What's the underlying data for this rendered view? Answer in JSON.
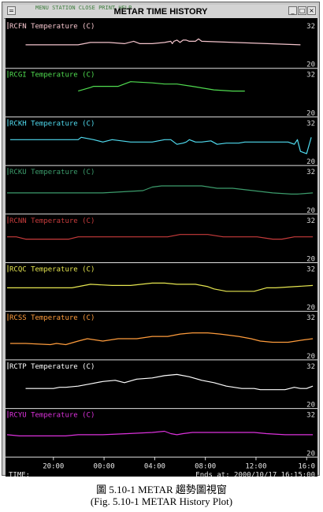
{
  "window": {
    "title": "METAR TIME HISTORY",
    "menu_strip": "MENU  STATION  CLOSE  PRINT  HELP"
  },
  "caption": {
    "line1": "圖 5.10-1 METAR 趨勢圖視窗",
    "line2": "(Fig. 5.10-1 METAR History Plot)"
  },
  "footer": {
    "time_label": "TIME:",
    "ends_at": "Ends at: 2000/10/17 16:15:00"
  },
  "x_axis": {
    "range": [
      0,
      100
    ],
    "ticks": [
      {
        "x": 15.0,
        "label": "20:00"
      },
      {
        "x": 31.4,
        "label": "00:00"
      },
      {
        "x": 47.8,
        "label": "04:00"
      },
      {
        "x": 64.2,
        "label": "08:00"
      },
      {
        "x": 80.6,
        "label": "12:00"
      },
      {
        "x": 97.0,
        "label": "16:0"
      }
    ]
  },
  "chart_data": [
    {
      "type": "line",
      "title": "RCFN Temperature (C)",
      "color": "#f4c4cc",
      "ylim": [
        20,
        32
      ],
      "ytick_top": "32",
      "ytick_bottom": "20",
      "x": [
        6,
        23,
        25,
        27,
        33,
        38,
        41,
        43,
        47,
        51,
        53,
        53.5,
        54,
        55,
        56,
        57,
        58,
        59,
        61,
        62,
        63,
        95
      ],
      "y": [
        26,
        26,
        26.5,
        27,
        27,
        26.5,
        27.5,
        26.5,
        26.5,
        27,
        27.5,
        26.5,
        27.5,
        28,
        27,
        28,
        28,
        27.5,
        27.5,
        28.5,
        27.5,
        26
      ]
    },
    {
      "type": "line",
      "title": "RCGI Temperature (C)",
      "color": "#50dc50",
      "ylim": [
        20,
        32
      ],
      "ytick_top": "32",
      "ytick_bottom": "20",
      "x": [
        23,
        27,
        28,
        36,
        40,
        47,
        51,
        55,
        60,
        67,
        73,
        77
      ],
      "y": [
        27,
        28.5,
        29,
        29,
        31,
        30.5,
        30,
        30,
        29,
        27.5,
        27,
        27
      ]
    },
    {
      "type": "line",
      "title": "RCKH Temperature (C)",
      "color": "#50dcf0",
      "ylim": [
        20,
        32
      ],
      "ytick_top": "32",
      "ytick_bottom": "20",
      "x": [
        1,
        6,
        23,
        24,
        28,
        31,
        34,
        40,
        47,
        51,
        53,
        54,
        55,
        57,
        58,
        59,
        61,
        63,
        66,
        68,
        71,
        75,
        77,
        79,
        80,
        91,
        93,
        94,
        95,
        97,
        98.5
      ],
      "y": [
        27,
        27,
        27,
        28,
        27,
        26,
        27,
        26,
        26,
        27,
        27,
        26,
        25,
        25.5,
        26,
        27,
        26,
        26,
        26.5,
        25,
        25.5,
        25.5,
        26,
        26,
        26,
        26,
        25,
        27,
        22,
        21,
        28
      ]
    },
    {
      "type": "line",
      "title": "RCKU Temperature (C)",
      "color": "#3c9c6c",
      "ylim": [
        20,
        32
      ],
      "ytick_top": "32",
      "ytick_bottom": "20",
      "x": [
        0,
        6,
        31,
        44,
        47,
        50,
        63,
        68,
        70,
        73,
        86,
        92,
        94,
        99
      ],
      "y": [
        25,
        25,
        25,
        26,
        27.5,
        28,
        28,
        27,
        27,
        27,
        25,
        24.5,
        24.5,
        25
      ]
    },
    {
      "type": "line",
      "title": "RCNN Temperature (C)",
      "color": "#c83c3c",
      "ylim": [
        20,
        32
      ],
      "ytick_top": "32",
      "ytick_bottom": "20",
      "x": [
        0,
        3,
        6,
        11,
        16,
        20,
        23,
        27,
        31,
        35,
        45,
        49,
        52,
        56,
        61,
        65,
        70,
        76,
        81,
        86,
        89,
        93,
        99
      ],
      "y": [
        27,
        27,
        26,
        26,
        26,
        26,
        27,
        27,
        27,
        27,
        27,
        27,
        27,
        28,
        28,
        28,
        27,
        27,
        27,
        26,
        26,
        27,
        27
      ]
    },
    {
      "type": "line",
      "title": "RCQC Temperature (C)",
      "color": "#e6e650",
      "ylim": [
        20,
        32
      ],
      "ytick_top": "32",
      "ytick_bottom": "20",
      "x": [
        0,
        6,
        21,
        23,
        27,
        34,
        40,
        47,
        51,
        55,
        61,
        65,
        67,
        69,
        71,
        80,
        84,
        87,
        93,
        99
      ],
      "y": [
        26,
        26,
        26,
        26.5,
        27.5,
        27,
        27,
        28,
        28,
        27.5,
        27.5,
        26.5,
        25.5,
        25,
        24.5,
        24.5,
        26,
        26,
        26.5,
        27
      ]
    },
    {
      "type": "line",
      "title": "RCSS Temperature (C)",
      "color": "#ff9c3c",
      "ylim": [
        20,
        32
      ],
      "ytick_top": "32",
      "ytick_bottom": "20",
      "x": [
        1,
        6,
        14,
        16,
        19,
        23,
        26,
        31,
        36,
        42,
        47,
        52,
        56,
        60,
        65,
        69,
        75,
        79,
        82,
        86,
        91,
        96,
        99
      ],
      "y": [
        23,
        23,
        22.5,
        23,
        22.5,
        24,
        25,
        24,
        25,
        25,
        26,
        26,
        27,
        27.5,
        27.5,
        27,
        26,
        25,
        24,
        23.5,
        23.5,
        24.5,
        25
      ]
    },
    {
      "type": "line",
      "title": "RCTP Temperature (C)",
      "color": "#ffffff",
      "ylim": [
        20,
        32
      ],
      "ytick_top": "32",
      "ytick_bottom": "20",
      "x": [
        6,
        15,
        17,
        19,
        23,
        27,
        31,
        35,
        38,
        42,
        47,
        51,
        55,
        59,
        63,
        67,
        71,
        76,
        80,
        82,
        85,
        90,
        93,
        95,
        97,
        99
      ],
      "y": [
        24.5,
        24.5,
        25,
        25,
        25.5,
        26.5,
        27.5,
        28,
        27,
        28.5,
        29,
        30,
        30.5,
        29.5,
        28,
        27,
        25.5,
        24.5,
        24.5,
        24,
        24,
        24,
        25,
        24.5,
        24.5,
        25.5
      ]
    },
    {
      "type": "line",
      "title": "RCYU Temperature (C)",
      "color": "#dc32dc",
      "ylim": [
        20,
        32
      ],
      "ytick_top": "32",
      "ytick_bottom": "20",
      "x": [
        0,
        4,
        19,
        23,
        31,
        39,
        47,
        51,
        53,
        55,
        57,
        60,
        62,
        65,
        70,
        76,
        80,
        84,
        90,
        95,
        99
      ],
      "y": [
        25.5,
        25,
        25,
        25.5,
        25.5,
        26,
        26.5,
        27,
        26,
        25.5,
        26,
        26.5,
        26.5,
        26.5,
        26.5,
        26.5,
        26.5,
        26,
        25.5,
        25.5,
        25.5
      ]
    }
  ]
}
